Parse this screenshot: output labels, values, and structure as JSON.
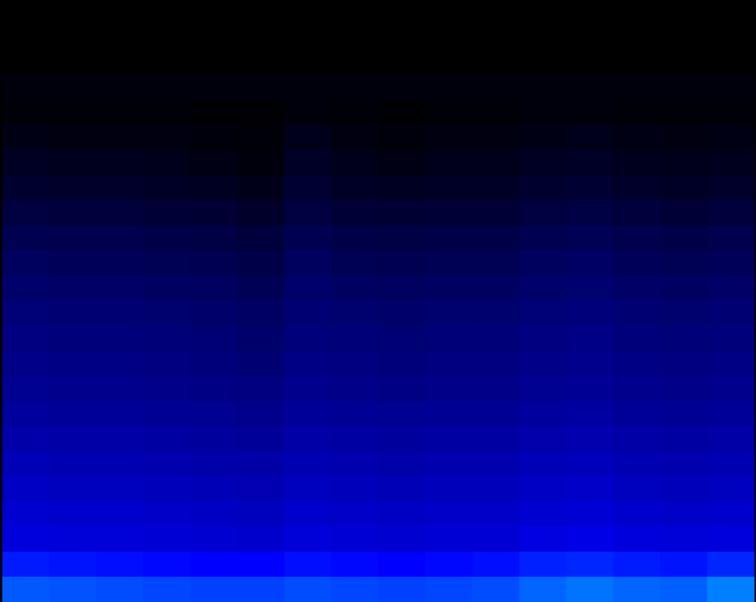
{
  "chart_data": {
    "type": "heatmap",
    "tick_labels": false,
    "zlim": [
      0,
      100
    ],
    "cells": [
      [
        0,
        0,
        0,
        0,
        0,
        0,
        0,
        0,
        0,
        0,
        0,
        0,
        0,
        0,
        0,
        0
      ],
      [
        0,
        0,
        0,
        0,
        0,
        0,
        0,
        0,
        0,
        0,
        0,
        0,
        0,
        0,
        0,
        0
      ],
      [
        0,
        0,
        0,
        0,
        0,
        0,
        0,
        0,
        0,
        0,
        0,
        0,
        0,
        0,
        0,
        0
      ],
      [
        3,
        3,
        3,
        3,
        3,
        3,
        3,
        3,
        3,
        3,
        3,
        3,
        3,
        3,
        3,
        3
      ],
      [
        2,
        2,
        2,
        2,
        1,
        1,
        3,
        2,
        1,
        2,
        2,
        3,
        3,
        2,
        2,
        2
      ],
      [
        5,
        4,
        4,
        4,
        3,
        2,
        6,
        4,
        3,
        4,
        4,
        5,
        6,
        5,
        4,
        5
      ],
      [
        8,
        7,
        7,
        6,
        5,
        3,
        9,
        6,
        5,
        6,
        6,
        8,
        9,
        7,
        6,
        7
      ],
      [
        11,
        10,
        10,
        9,
        8,
        6,
        12,
        9,
        8,
        9,
        9,
        11,
        12,
        10,
        9,
        10
      ],
      [
        15,
        14,
        14,
        13,
        12,
        10,
        15,
        13,
        12,
        13,
        13,
        15,
        16,
        14,
        13,
        14
      ],
      [
        19,
        18,
        18,
        17,
        16,
        14,
        19,
        17,
        16,
        17,
        17,
        19,
        20,
        18,
        17,
        18
      ],
      [
        22,
        21,
        21,
        20,
        19,
        17,
        22,
        20,
        19,
        20,
        20,
        22,
        23,
        21,
        20,
        21
      ],
      [
        25,
        24,
        24,
        23,
        22,
        20,
        25,
        23,
        22,
        23,
        23,
        25,
        26,
        24,
        23,
        24
      ],
      [
        28,
        27,
        27,
        26,
        25,
        23,
        27,
        26,
        25,
        26,
        26,
        28,
        29,
        27,
        26,
        27
      ],
      [
        30,
        29,
        29,
        28,
        27,
        25,
        29,
        28,
        27,
        28,
        28,
        30,
        31,
        29,
        28,
        29
      ],
      [
        32,
        31,
        31,
        30,
        29,
        27,
        31,
        30,
        29,
        30,
        30,
        32,
        33,
        31,
        30,
        31
      ],
      [
        34,
        33,
        33,
        32,
        31,
        30,
        33,
        32,
        31,
        32,
        32,
        34,
        35,
        33,
        32,
        33
      ],
      [
        37,
        36,
        36,
        35,
        34,
        33,
        36,
        35,
        34,
        35,
        35,
        37,
        38,
        36,
        35,
        36
      ],
      [
        40,
        39,
        39,
        38,
        37,
        36,
        39,
        38,
        37,
        38,
        38,
        40,
        41,
        39,
        38,
        39
      ],
      [
        43,
        42,
        42,
        41,
        40,
        39,
        42,
        41,
        40,
        41,
        41,
        43,
        44,
        42,
        41,
        42
      ],
      [
        46,
        45,
        45,
        44,
        43,
        42,
        45,
        44,
        43,
        44,
        44,
        46,
        47,
        45,
        44,
        45
      ],
      [
        49,
        48,
        48,
        47,
        46,
        45,
        48,
        47,
        46,
        47,
        47,
        49,
        50,
        48,
        47,
        48
      ],
      [
        52,
        51,
        51,
        50,
        49,
        48,
        51,
        50,
        49,
        50,
        50,
        53,
        54,
        52,
        51,
        52
      ],
      [
        64,
        63,
        62,
        61,
        60,
        60,
        62,
        61,
        60,
        61,
        62,
        65,
        66,
        64,
        63,
        66
      ],
      [
        74,
        73,
        72,
        71,
        70,
        70,
        72,
        71,
        70,
        71,
        72,
        76,
        78,
        76,
        75,
        80
      ]
    ]
  }
}
